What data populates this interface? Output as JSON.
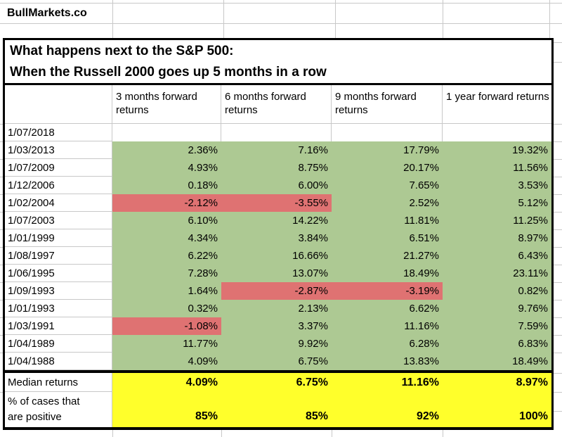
{
  "brand": "BullMarkets.co",
  "title": {
    "line1": "What happens next to the S&P 500:",
    "line2": "When the Russell 2000 goes up 5 months in a row"
  },
  "colors": {
    "band_blue": "#b7c7e8",
    "positive_green": "#adc993",
    "negative_red": "#df7272",
    "summary_yellow": "#ffff2b",
    "gridline_gray": "#c8c8c8",
    "border_black": "#000000"
  },
  "table": {
    "headers": [
      "3 months forward returns",
      "6 months forward returns",
      "9 months forward returns",
      "1 year forward returns"
    ],
    "rows": [
      {
        "date": "1/07/2018",
        "values": [
          "",
          "",
          "",
          ""
        ],
        "fills": [
          "none",
          "none",
          "none",
          "none"
        ]
      },
      {
        "date": "1/03/2013",
        "values": [
          "2.36%",
          "7.16%",
          "17.79%",
          "19.32%"
        ],
        "fills": [
          "green",
          "green",
          "green",
          "green"
        ]
      },
      {
        "date": "1/07/2009",
        "values": [
          "4.93%",
          "8.75%",
          "20.17%",
          "11.56%"
        ],
        "fills": [
          "green",
          "green",
          "green",
          "green"
        ]
      },
      {
        "date": "1/12/2006",
        "values": [
          "0.18%",
          "6.00%",
          "7.65%",
          "3.53%"
        ],
        "fills": [
          "green",
          "green",
          "green",
          "green"
        ]
      },
      {
        "date": "1/02/2004",
        "values": [
          "-2.12%",
          "-3.55%",
          "2.52%",
          "5.12%"
        ],
        "fills": [
          "red",
          "red",
          "green",
          "green"
        ]
      },
      {
        "date": "1/07/2003",
        "values": [
          "6.10%",
          "14.22%",
          "11.81%",
          "11.25%"
        ],
        "fills": [
          "green",
          "green",
          "green",
          "green"
        ]
      },
      {
        "date": "1/01/1999",
        "values": [
          "4.34%",
          "3.84%",
          "6.51%",
          "8.97%"
        ],
        "fills": [
          "green",
          "green",
          "green",
          "green"
        ]
      },
      {
        "date": "1/08/1997",
        "values": [
          "6.22%",
          "16.66%",
          "21.27%",
          "6.43%"
        ],
        "fills": [
          "green",
          "green",
          "green",
          "green"
        ]
      },
      {
        "date": "1/06/1995",
        "values": [
          "7.28%",
          "13.07%",
          "18.49%",
          "23.11%"
        ],
        "fills": [
          "green",
          "green",
          "green",
          "green"
        ]
      },
      {
        "date": "1/09/1993",
        "values": [
          "1.64%",
          "-2.87%",
          "-3.19%",
          "0.82%"
        ],
        "fills": [
          "green",
          "red",
          "red",
          "green"
        ]
      },
      {
        "date": "1/01/1993",
        "values": [
          "0.32%",
          "2.13%",
          "6.62%",
          "9.76%"
        ],
        "fills": [
          "green",
          "green",
          "green",
          "green"
        ]
      },
      {
        "date": "1/03/1991",
        "values": [
          "-1.08%",
          "3.37%",
          "11.16%",
          "7.59%"
        ],
        "fills": [
          "red",
          "green",
          "green",
          "green"
        ]
      },
      {
        "date": "1/04/1989",
        "values": [
          "11.77%",
          "9.92%",
          "6.28%",
          "6.83%"
        ],
        "fills": [
          "green",
          "green",
          "green",
          "green"
        ]
      },
      {
        "date": "1/04/1988",
        "values": [
          "4.09%",
          "6.75%",
          "13.83%",
          "18.49%"
        ],
        "fills": [
          "green",
          "green",
          "green",
          "green"
        ]
      }
    ],
    "median": {
      "label": "Median returns",
      "values": [
        "4.09%",
        "6.75%",
        "11.16%",
        "8.97%"
      ]
    },
    "pct_positive": {
      "label_lines": [
        "% of cases that",
        "are positive"
      ],
      "values": [
        "85%",
        "85%",
        "92%",
        "100%"
      ]
    }
  }
}
